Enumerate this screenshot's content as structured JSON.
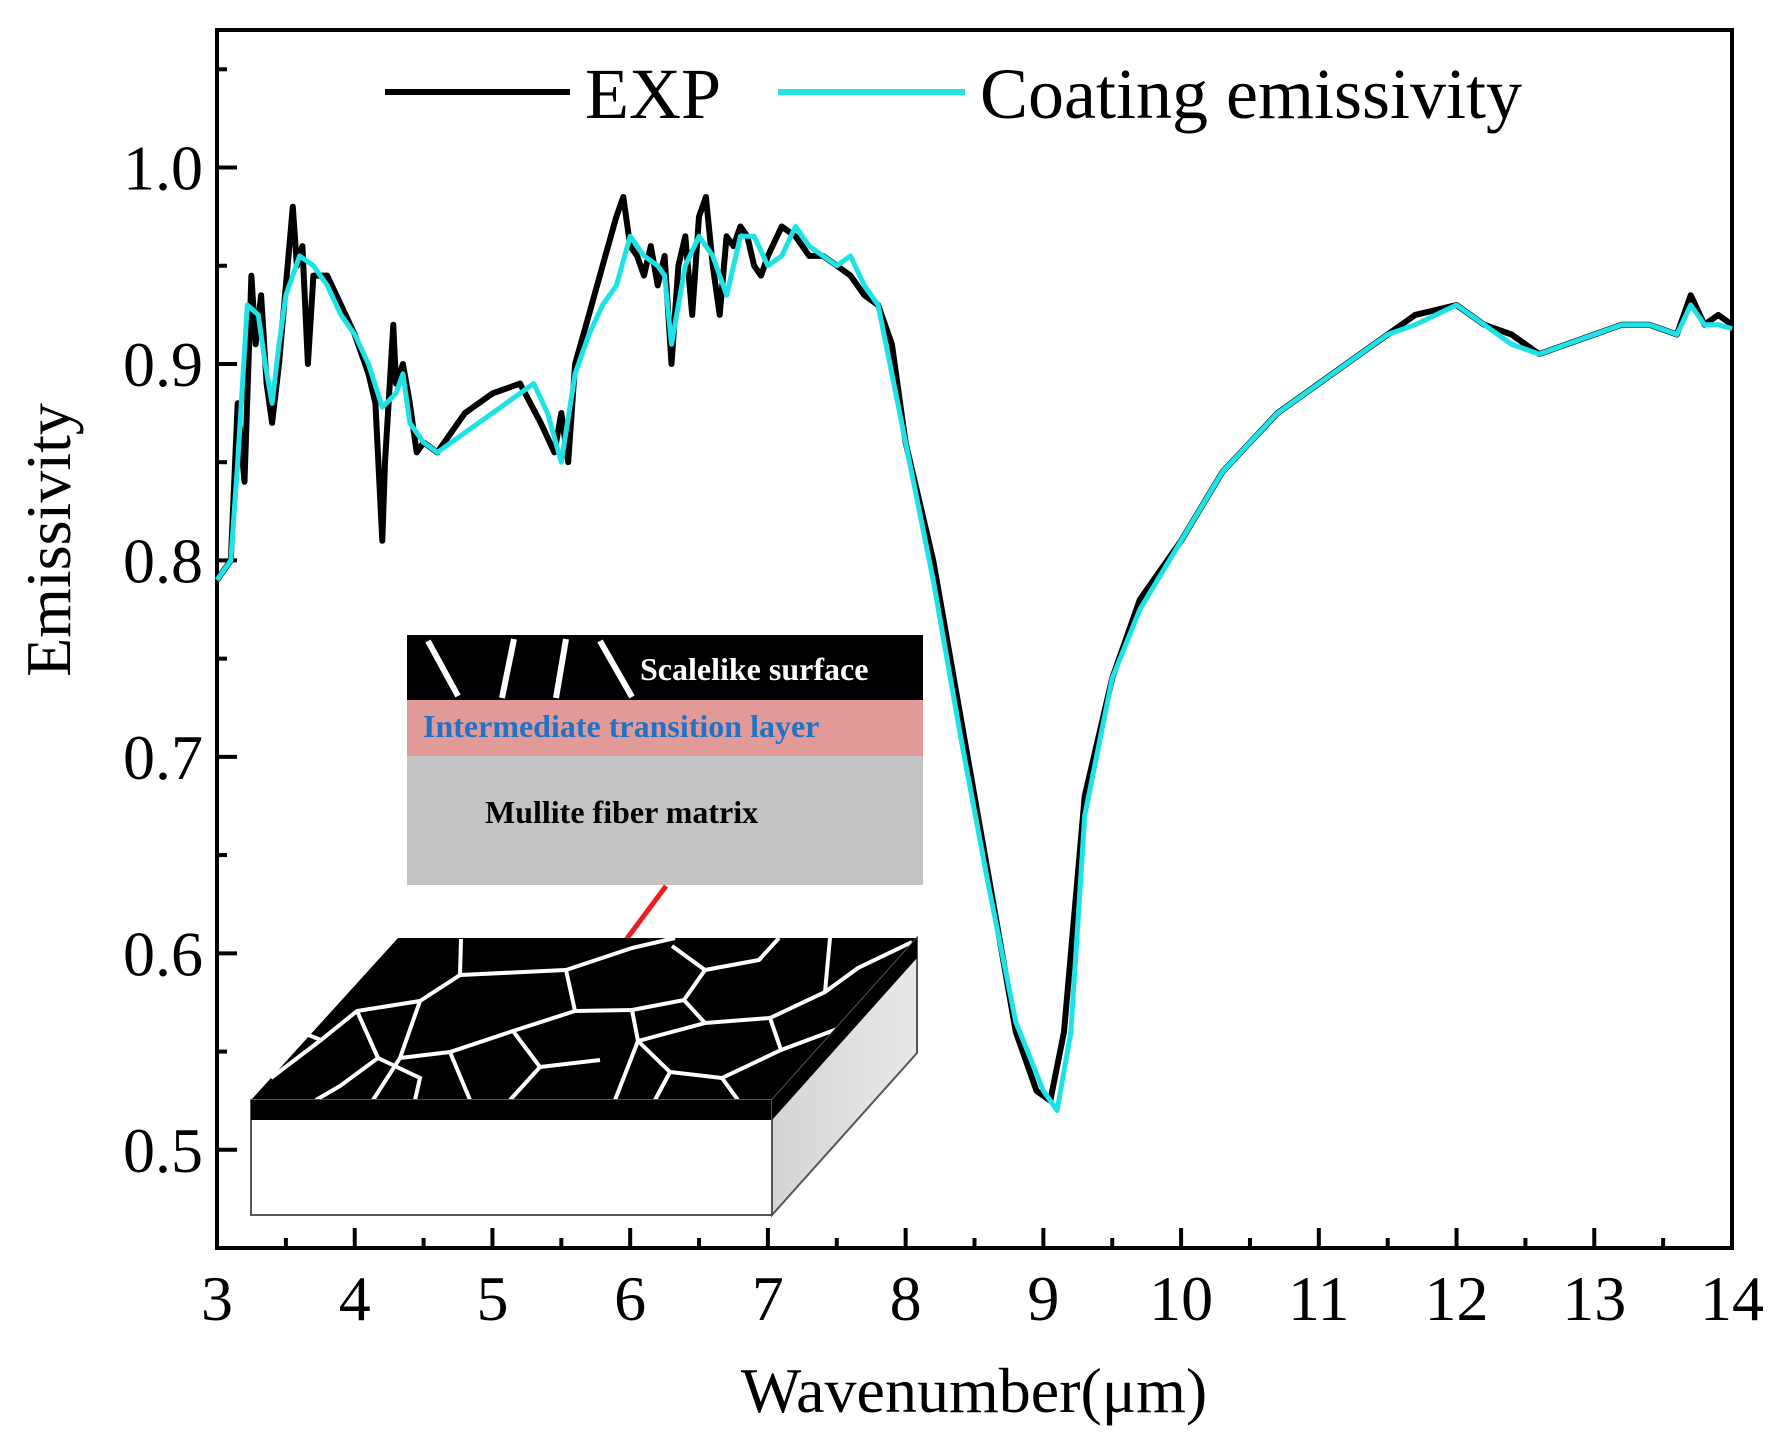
{
  "chart_data": {
    "type": "line",
    "xlabel": "Wavenumber(μm)",
    "ylabel": "Emissivity",
    "xlim": [
      3,
      14
    ],
    "ylim": [
      0.45,
      1.07
    ],
    "x_ticks": [
      "3",
      "4",
      "5",
      "6",
      "7",
      "8",
      "9",
      "10",
      "11",
      "12",
      "13",
      "14"
    ],
    "y_ticks": [
      "0.5",
      "0.6",
      "0.7",
      "0.8",
      "0.9",
      "1.0"
    ],
    "legend_position": "top",
    "series": [
      {
        "name": "EXP",
        "color": "#000000",
        "x": [
          3.0,
          3.1,
          3.15,
          3.2,
          3.25,
          3.28,
          3.32,
          3.36,
          3.4,
          3.45,
          3.5,
          3.55,
          3.58,
          3.62,
          3.66,
          3.7,
          3.8,
          3.9,
          4.0,
          4.1,
          4.15,
          4.2,
          4.22,
          4.25,
          4.28,
          4.3,
          4.35,
          4.4,
          4.45,
          4.5,
          4.6,
          4.7,
          4.8,
          5.0,
          5.2,
          5.35,
          5.45,
          5.5,
          5.55,
          5.6,
          5.7,
          5.8,
          5.9,
          5.95,
          6.0,
          6.05,
          6.1,
          6.15,
          6.2,
          6.25,
          6.3,
          6.35,
          6.4,
          6.45,
          6.5,
          6.55,
          6.6,
          6.65,
          6.7,
          6.75,
          6.8,
          6.85,
          6.9,
          6.95,
          7.0,
          7.1,
          7.2,
          7.3,
          7.4,
          7.5,
          7.6,
          7.7,
          7.8,
          7.9,
          8.0,
          8.2,
          8.4,
          8.6,
          8.8,
          8.95,
          9.05,
          9.15,
          9.3,
          9.5,
          9.7,
          10.0,
          10.3,
          10.5,
          10.7,
          11.0,
          11.3,
          11.5,
          11.7,
          12.0,
          12.2,
          12.4,
          12.6,
          12.8,
          13.0,
          13.2,
          13.4,
          13.6,
          13.7,
          13.8,
          13.9,
          14.0
        ],
        "y": [
          0.79,
          0.8,
          0.88,
          0.84,
          0.945,
          0.91,
          0.935,
          0.89,
          0.87,
          0.9,
          0.94,
          0.98,
          0.95,
          0.96,
          0.9,
          0.945,
          0.945,
          0.93,
          0.915,
          0.895,
          0.88,
          0.81,
          0.85,
          0.885,
          0.92,
          0.89,
          0.9,
          0.88,
          0.855,
          0.86,
          0.855,
          0.865,
          0.875,
          0.885,
          0.89,
          0.87,
          0.855,
          0.875,
          0.85,
          0.9,
          0.925,
          0.95,
          0.975,
          0.985,
          0.96,
          0.955,
          0.945,
          0.96,
          0.94,
          0.955,
          0.9,
          0.95,
          0.965,
          0.925,
          0.975,
          0.985,
          0.95,
          0.925,
          0.965,
          0.96,
          0.97,
          0.965,
          0.95,
          0.945,
          0.955,
          0.97,
          0.965,
          0.955,
          0.955,
          0.95,
          0.945,
          0.935,
          0.93,
          0.91,
          0.86,
          0.8,
          0.72,
          0.64,
          0.56,
          0.53,
          0.525,
          0.56,
          0.68,
          0.74,
          0.78,
          0.81,
          0.845,
          0.86,
          0.875,
          0.89,
          0.905,
          0.915,
          0.925,
          0.93,
          0.92,
          0.915,
          0.905,
          0.91,
          0.915,
          0.92,
          0.92,
          0.915,
          0.935,
          0.92,
          0.925,
          0.92
        ]
      },
      {
        "name": "Coating emissivity",
        "color": "#1ee3e6",
        "x": [
          3.0,
          3.1,
          3.15,
          3.22,
          3.3,
          3.35,
          3.4,
          3.45,
          3.5,
          3.55,
          3.6,
          3.7,
          3.8,
          3.9,
          4.0,
          4.1,
          4.2,
          4.3,
          4.35,
          4.4,
          4.5,
          4.6,
          4.7,
          4.8,
          5.0,
          5.2,
          5.3,
          5.4,
          5.5,
          5.6,
          5.7,
          5.8,
          5.9,
          6.0,
          6.1,
          6.2,
          6.25,
          6.3,
          6.4,
          6.5,
          6.6,
          6.7,
          6.8,
          6.9,
          7.0,
          7.1,
          7.2,
          7.3,
          7.5,
          7.6,
          7.7,
          7.8,
          8.0,
          8.2,
          8.4,
          8.6,
          8.8,
          9.0,
          9.1,
          9.2,
          9.3,
          9.5,
          9.7,
          10.0,
          10.3,
          10.5,
          10.7,
          11.0,
          11.3,
          11.5,
          11.7,
          11.85,
          12.0,
          12.2,
          12.4,
          12.6,
          12.8,
          13.0,
          13.2,
          13.4,
          13.6,
          13.7,
          13.8,
          13.9,
          14.0
        ],
        "y": [
          0.79,
          0.8,
          0.85,
          0.93,
          0.925,
          0.9,
          0.88,
          0.91,
          0.935,
          0.945,
          0.955,
          0.95,
          0.94,
          0.925,
          0.915,
          0.9,
          0.878,
          0.885,
          0.895,
          0.87,
          0.86,
          0.855,
          0.86,
          0.865,
          0.875,
          0.885,
          0.89,
          0.875,
          0.85,
          0.895,
          0.915,
          0.93,
          0.94,
          0.965,
          0.955,
          0.95,
          0.945,
          0.91,
          0.95,
          0.965,
          0.955,
          0.935,
          0.965,
          0.965,
          0.95,
          0.955,
          0.97,
          0.96,
          0.95,
          0.955,
          0.94,
          0.93,
          0.86,
          0.79,
          0.71,
          0.635,
          0.565,
          0.53,
          0.52,
          0.56,
          0.67,
          0.74,
          0.775,
          0.81,
          0.845,
          0.86,
          0.875,
          0.89,
          0.905,
          0.915,
          0.92,
          0.925,
          0.93,
          0.92,
          0.91,
          0.905,
          0.91,
          0.915,
          0.92,
          0.92,
          0.915,
          0.93,
          0.92,
          0.92,
          0.918
        ]
      }
    ]
  },
  "inset": {
    "labels": {
      "top": "Scalelike surface",
      "middle": "Intermediate transition layer",
      "bottom": "Mullite fiber matrix"
    },
    "colors": {
      "top": "#000000",
      "middle": "#e29a98",
      "middle_text": "#1e73c8",
      "bottom": "#c3c3c3",
      "arrow": "#ee1c1c"
    }
  }
}
